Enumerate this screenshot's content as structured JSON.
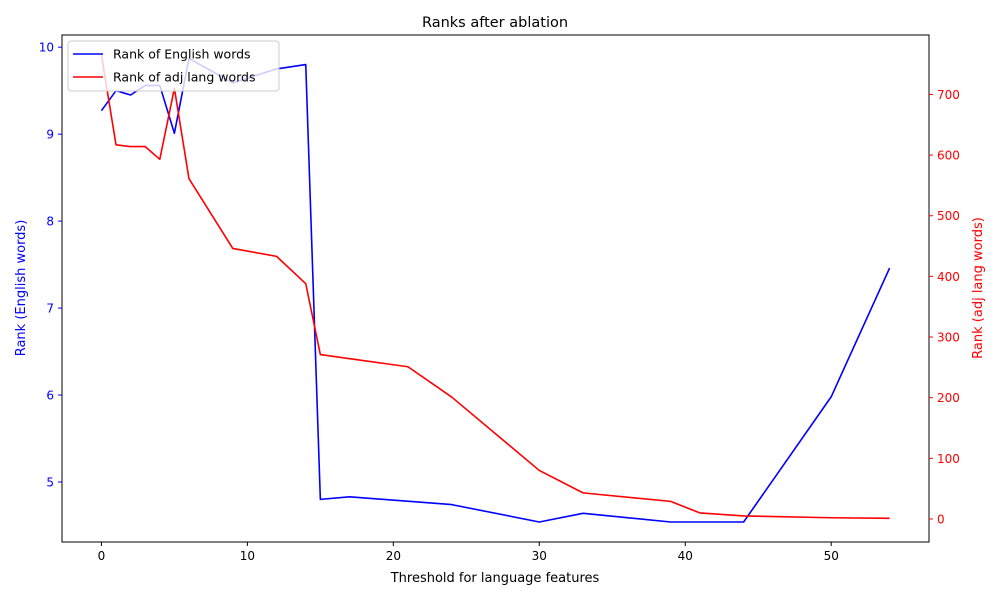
{
  "chart_data": {
    "type": "line",
    "title": "Ranks after ablation",
    "xlabel": "Threshold for language features",
    "ylabel_left": "Rank (English words)",
    "ylabel_right": "Rank (adj lang words)",
    "xlim": [
      -2.7,
      56.7
    ],
    "ylim_left": [
      4.31,
      10.14
    ],
    "ylim_right": [
      -38,
      798
    ],
    "x_ticks": [
      0,
      10,
      20,
      30,
      40,
      50
    ],
    "y_left_ticks": [
      5,
      6,
      7,
      8,
      9,
      10
    ],
    "y_right_ticks": [
      0,
      100,
      200,
      300,
      400,
      500,
      600,
      700
    ],
    "grid": false,
    "legend_position": "top-left",
    "colors": {
      "english": "#0000ff",
      "adj": "#ff0000",
      "axes": "#000000"
    },
    "series": [
      {
        "name": "Rank of English words",
        "axis": "left",
        "x": [
          0,
          1,
          2,
          3,
          4,
          5,
          6,
          9,
          12,
          14,
          15,
          17,
          24,
          30,
          33,
          39,
          44,
          50,
          54
        ],
        "y": [
          9.27,
          9.5,
          9.45,
          9.56,
          9.56,
          9.01,
          9.87,
          9.59,
          9.75,
          9.8,
          4.8,
          4.83,
          4.74,
          4.54,
          4.64,
          4.54,
          4.54,
          5.98,
          7.46
        ]
      },
      {
        "name": "Rank of adj lang words",
        "axis": "right",
        "x": [
          0,
          1,
          2,
          3,
          4,
          5,
          6,
          9,
          12,
          14,
          15,
          21,
          24,
          30,
          33,
          39,
          41,
          44,
          50,
          54
        ],
        "y": [
          765,
          617,
          614,
          614,
          593,
          710,
          561,
          446,
          433,
          388,
          271,
          251,
          201,
          80,
          43,
          29,
          10,
          5,
          2,
          1
        ]
      }
    ]
  }
}
